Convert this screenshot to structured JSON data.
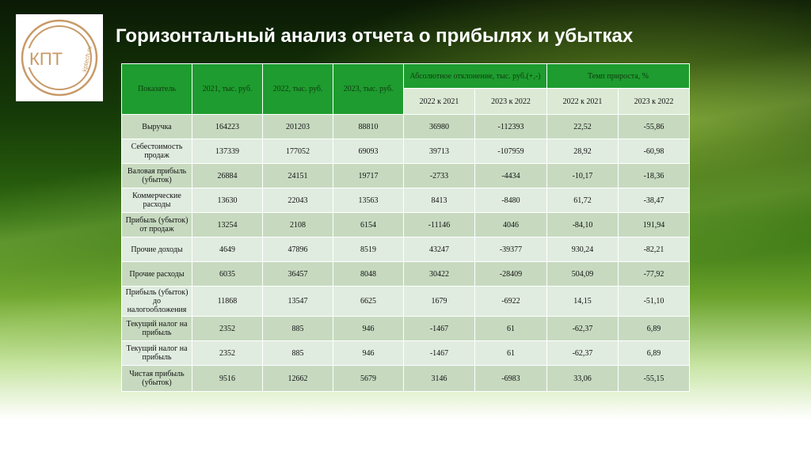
{
  "logo": {
    "text": "КПТ",
    "site": "kptech.ru"
  },
  "title": "Горизонтальный анализ отчета о прибылях и убытках",
  "table": {
    "headers": {
      "indicator": "Показатель",
      "y2021": "2021, тыс. руб.",
      "y2022": "2022, тыс. руб.",
      "y2023": "2023, тыс. руб.",
      "abs": "Абсолютное отклонение, тыс. руб.(+,-)",
      "rate": "Темп прироста, %",
      "sub": [
        "2022 к 2021",
        "2023 к 2022",
        "2022 к 2021",
        "2023 к 2022"
      ]
    },
    "rows": [
      [
        "Выручка",
        "164223",
        "201203",
        "88810",
        "36980",
        "-112393",
        "22,52",
        "-55,86"
      ],
      [
        "Себестоимость продаж",
        "137339",
        "177052",
        "69093",
        "39713",
        "-107959",
        "28,92",
        "-60,98"
      ],
      [
        "Валовая прибыль (убыток)",
        "26884",
        "24151",
        "19717",
        "-2733",
        "-4434",
        "-10,17",
        "-18,36"
      ],
      [
        "Коммерческие расходы",
        "13630",
        "22043",
        "13563",
        "8413",
        "-8480",
        "61,72",
        "-38,47"
      ],
      [
        "Прибыль (убыток) от продаж",
        "13254",
        "2108",
        "6154",
        "-11146",
        "4046",
        "-84,10",
        "191,94"
      ],
      [
        "Прочие доходы",
        "4649",
        "47896",
        "8519",
        "43247",
        "-39377",
        "930,24",
        "-82,21"
      ],
      [
        "Прочие расходы",
        "6035",
        "36457",
        "8048",
        "30422",
        "-28409",
        "504,09",
        "-77,92"
      ],
      [
        "Прибыль (убыток) до налогообложения",
        "11868",
        "13547",
        "6625",
        "1679",
        "-6922",
        "14,15",
        "-51,10"
      ],
      [
        "Текущий налог на прибыль",
        "2352",
        "885",
        "946",
        "-1467",
        "61",
        "-62,37",
        "6,89"
      ],
      [
        "Текущий налог на прибыль",
        "2352",
        "885",
        "946",
        "-1467",
        "61",
        "-62,37",
        "6,89"
      ],
      [
        "Чистая прибыль (убыток)",
        "9516",
        "12662",
        "5679",
        "3146",
        "-6983",
        "33,06",
        "-55,15"
      ]
    ]
  }
}
